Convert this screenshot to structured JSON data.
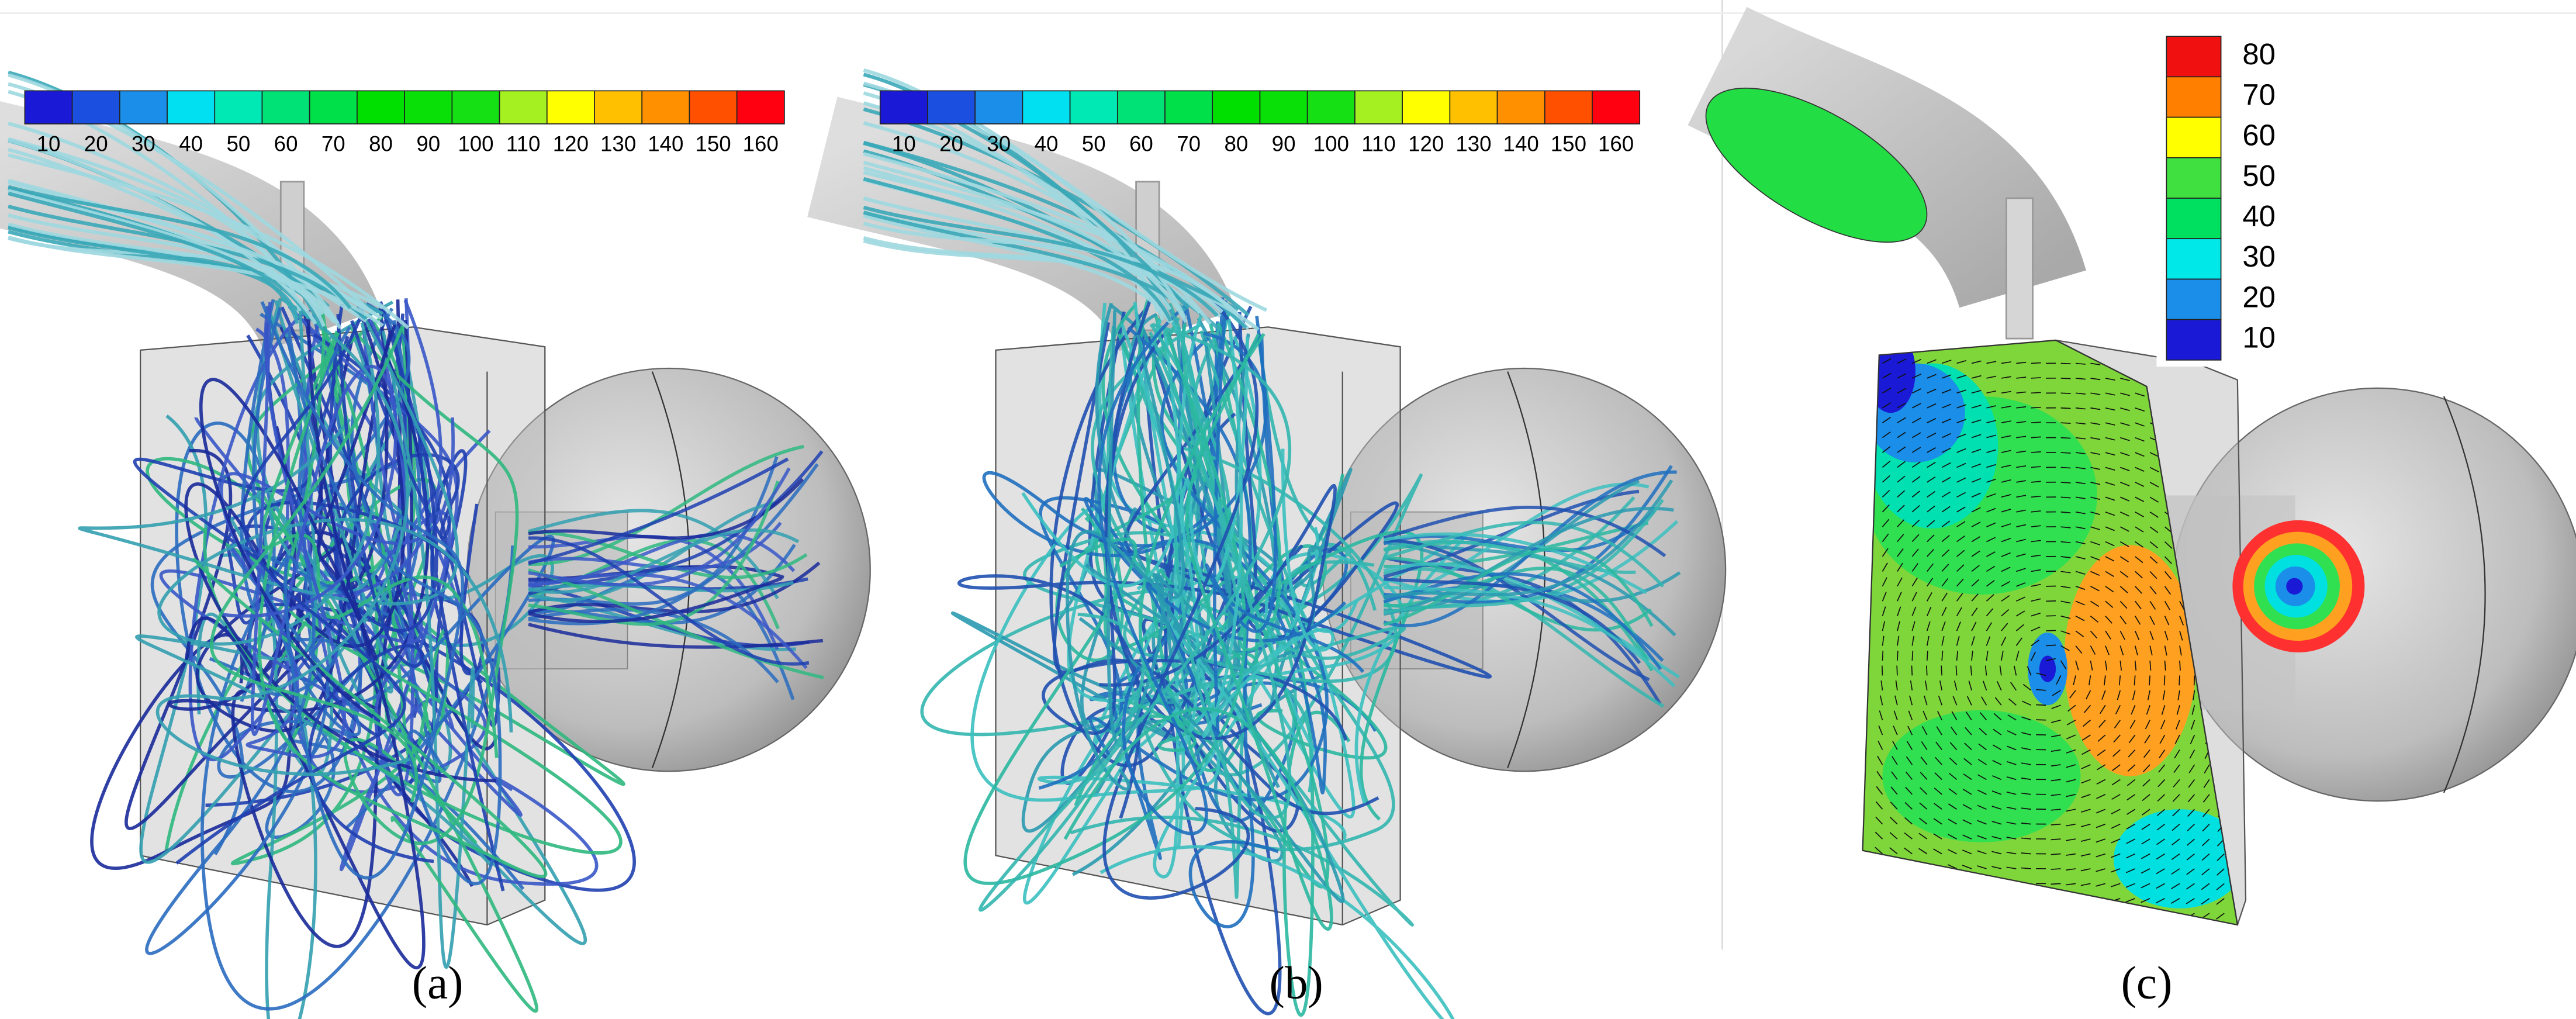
{
  "panels": [
    {
      "caption": "(a)",
      "colorbar": {
        "ticks": [
          10,
          20,
          30,
          40,
          50,
          60,
          70,
          80,
          90,
          100,
          110,
          120,
          130,
          140,
          150,
          160
        ],
        "colors": [
          "#1a1ad6",
          "#1a4fe0",
          "#1a8ee8",
          "#00e0f0",
          "#00e8b4",
          "#00e276",
          "#00e048",
          "#00e000",
          "#08e008",
          "#14e014",
          "#a4f020",
          "#ffff00",
          "#ffc000",
          "#ff9000",
          "#ff5000",
          "#ff0010"
        ]
      }
    },
    {
      "caption": "(b)",
      "colorbar": {
        "ticks": [
          10,
          20,
          30,
          40,
          50,
          60,
          70,
          80,
          90,
          100,
          110,
          120,
          130,
          140,
          150,
          160
        ],
        "colors": [
          "#1a1ad6",
          "#1a4fe0",
          "#1a8ee8",
          "#00e0f0",
          "#00e8b4",
          "#00e276",
          "#00e048",
          "#00e000",
          "#08e008",
          "#14e014",
          "#a4f020",
          "#ffff00",
          "#ffc000",
          "#ff9000",
          "#ff5000",
          "#ff0010"
        ]
      }
    },
    {
      "caption": "(c)",
      "colorbar": {
        "ticks": [
          80,
          70,
          60,
          50,
          40,
          30,
          20,
          10
        ],
        "colors": [
          "#f01010",
          "#ff8000",
          "#ffff00",
          "#40e040",
          "#00e060",
          "#00e8e8",
          "#1a8ee8",
          "#1a1ad6"
        ]
      }
    }
  ]
}
